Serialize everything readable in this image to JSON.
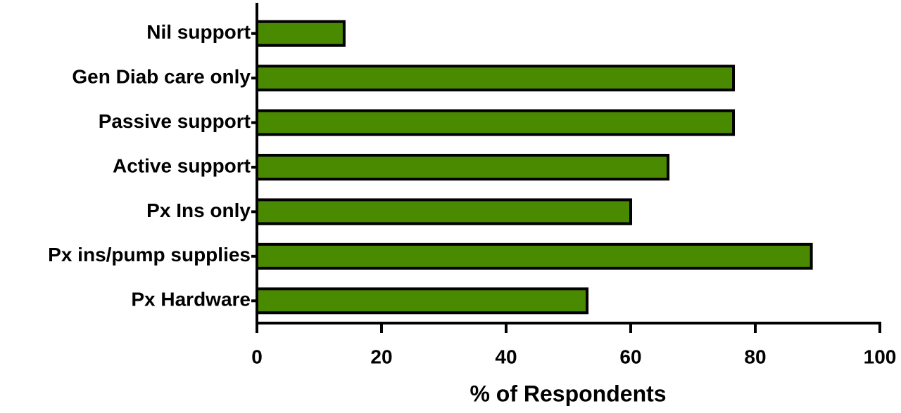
{
  "chart_data": {
    "type": "barh",
    "x_label": "% of Respondents",
    "categories": [
      "Nil support",
      "Gen Diab care only",
      "Passive support",
      "Active support",
      "Px Ins only",
      "Px ins/pump supplies",
      "Px Hardware"
    ],
    "values": [
      14,
      76.5,
      76.5,
      66,
      60,
      89,
      53
    ],
    "color": "#4a8a00",
    "xlim": [
      0,
      100
    ],
    "xticks": [
      0,
      20,
      40,
      60,
      80,
      100
    ],
    "grid": false
  }
}
